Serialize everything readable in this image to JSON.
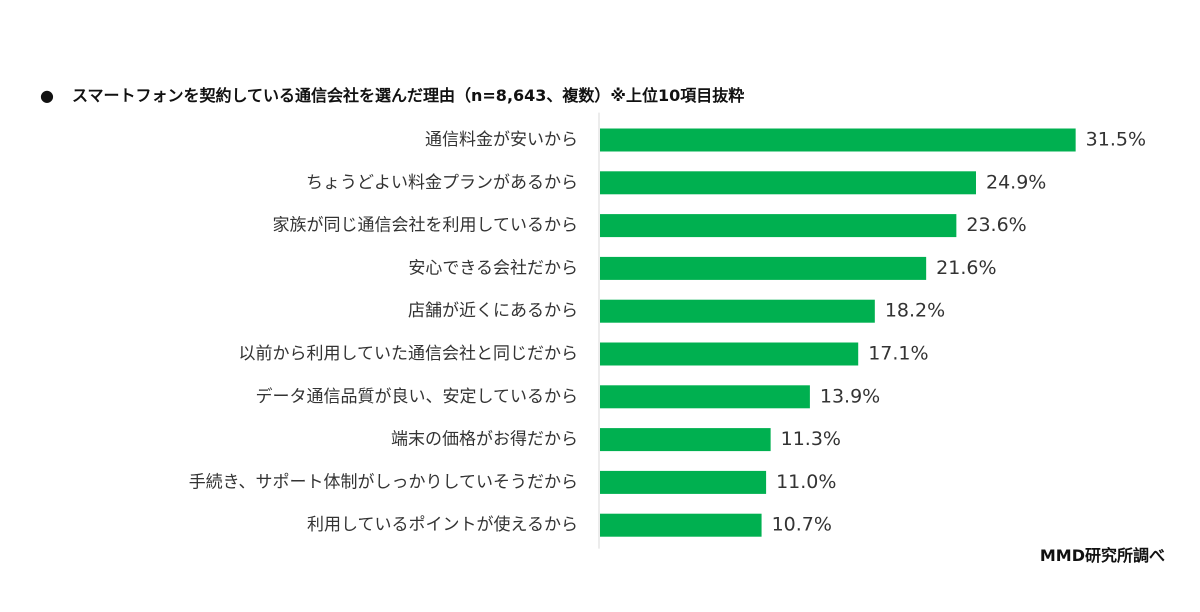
{
  "chart_data": {
    "type": "bar",
    "orientation": "horizontal",
    "title": "スマートフォンを契約している通信会社を選んだ理由（n=8,643、複数）※上位10項目抜粋",
    "title_bullet": "●",
    "categories": [
      "通信料金が安いから",
      "ちょうどよい料金プランがあるから",
      "家族が同じ通信会社を利用しているから",
      "安心できる会社だから",
      "店舗が近くにあるから",
      "以前から利用していた通信会社と同じだから",
      "データ通信品質が良い、安定しているから",
      "端末の価格がお得だから",
      "手続き、サポート体制がしっかりしていそうだから",
      "利用しているポイントが使えるから"
    ],
    "values": [
      31.5,
      24.9,
      23.6,
      21.6,
      18.2,
      17.1,
      13.9,
      11.3,
      11.0,
      10.7
    ],
    "value_labels": [
      "31.5%",
      "24.9%",
      "23.6%",
      "21.6%",
      "18.2%",
      "17.1%",
      "13.9%",
      "11.3%",
      "11.0%",
      "10.7%"
    ],
    "unit": "%",
    "bar_color": "#00B050",
    "axis_line_color": "#D9D9D9",
    "grid": false,
    "legend": false
  },
  "source": "MMD研究所調べ"
}
